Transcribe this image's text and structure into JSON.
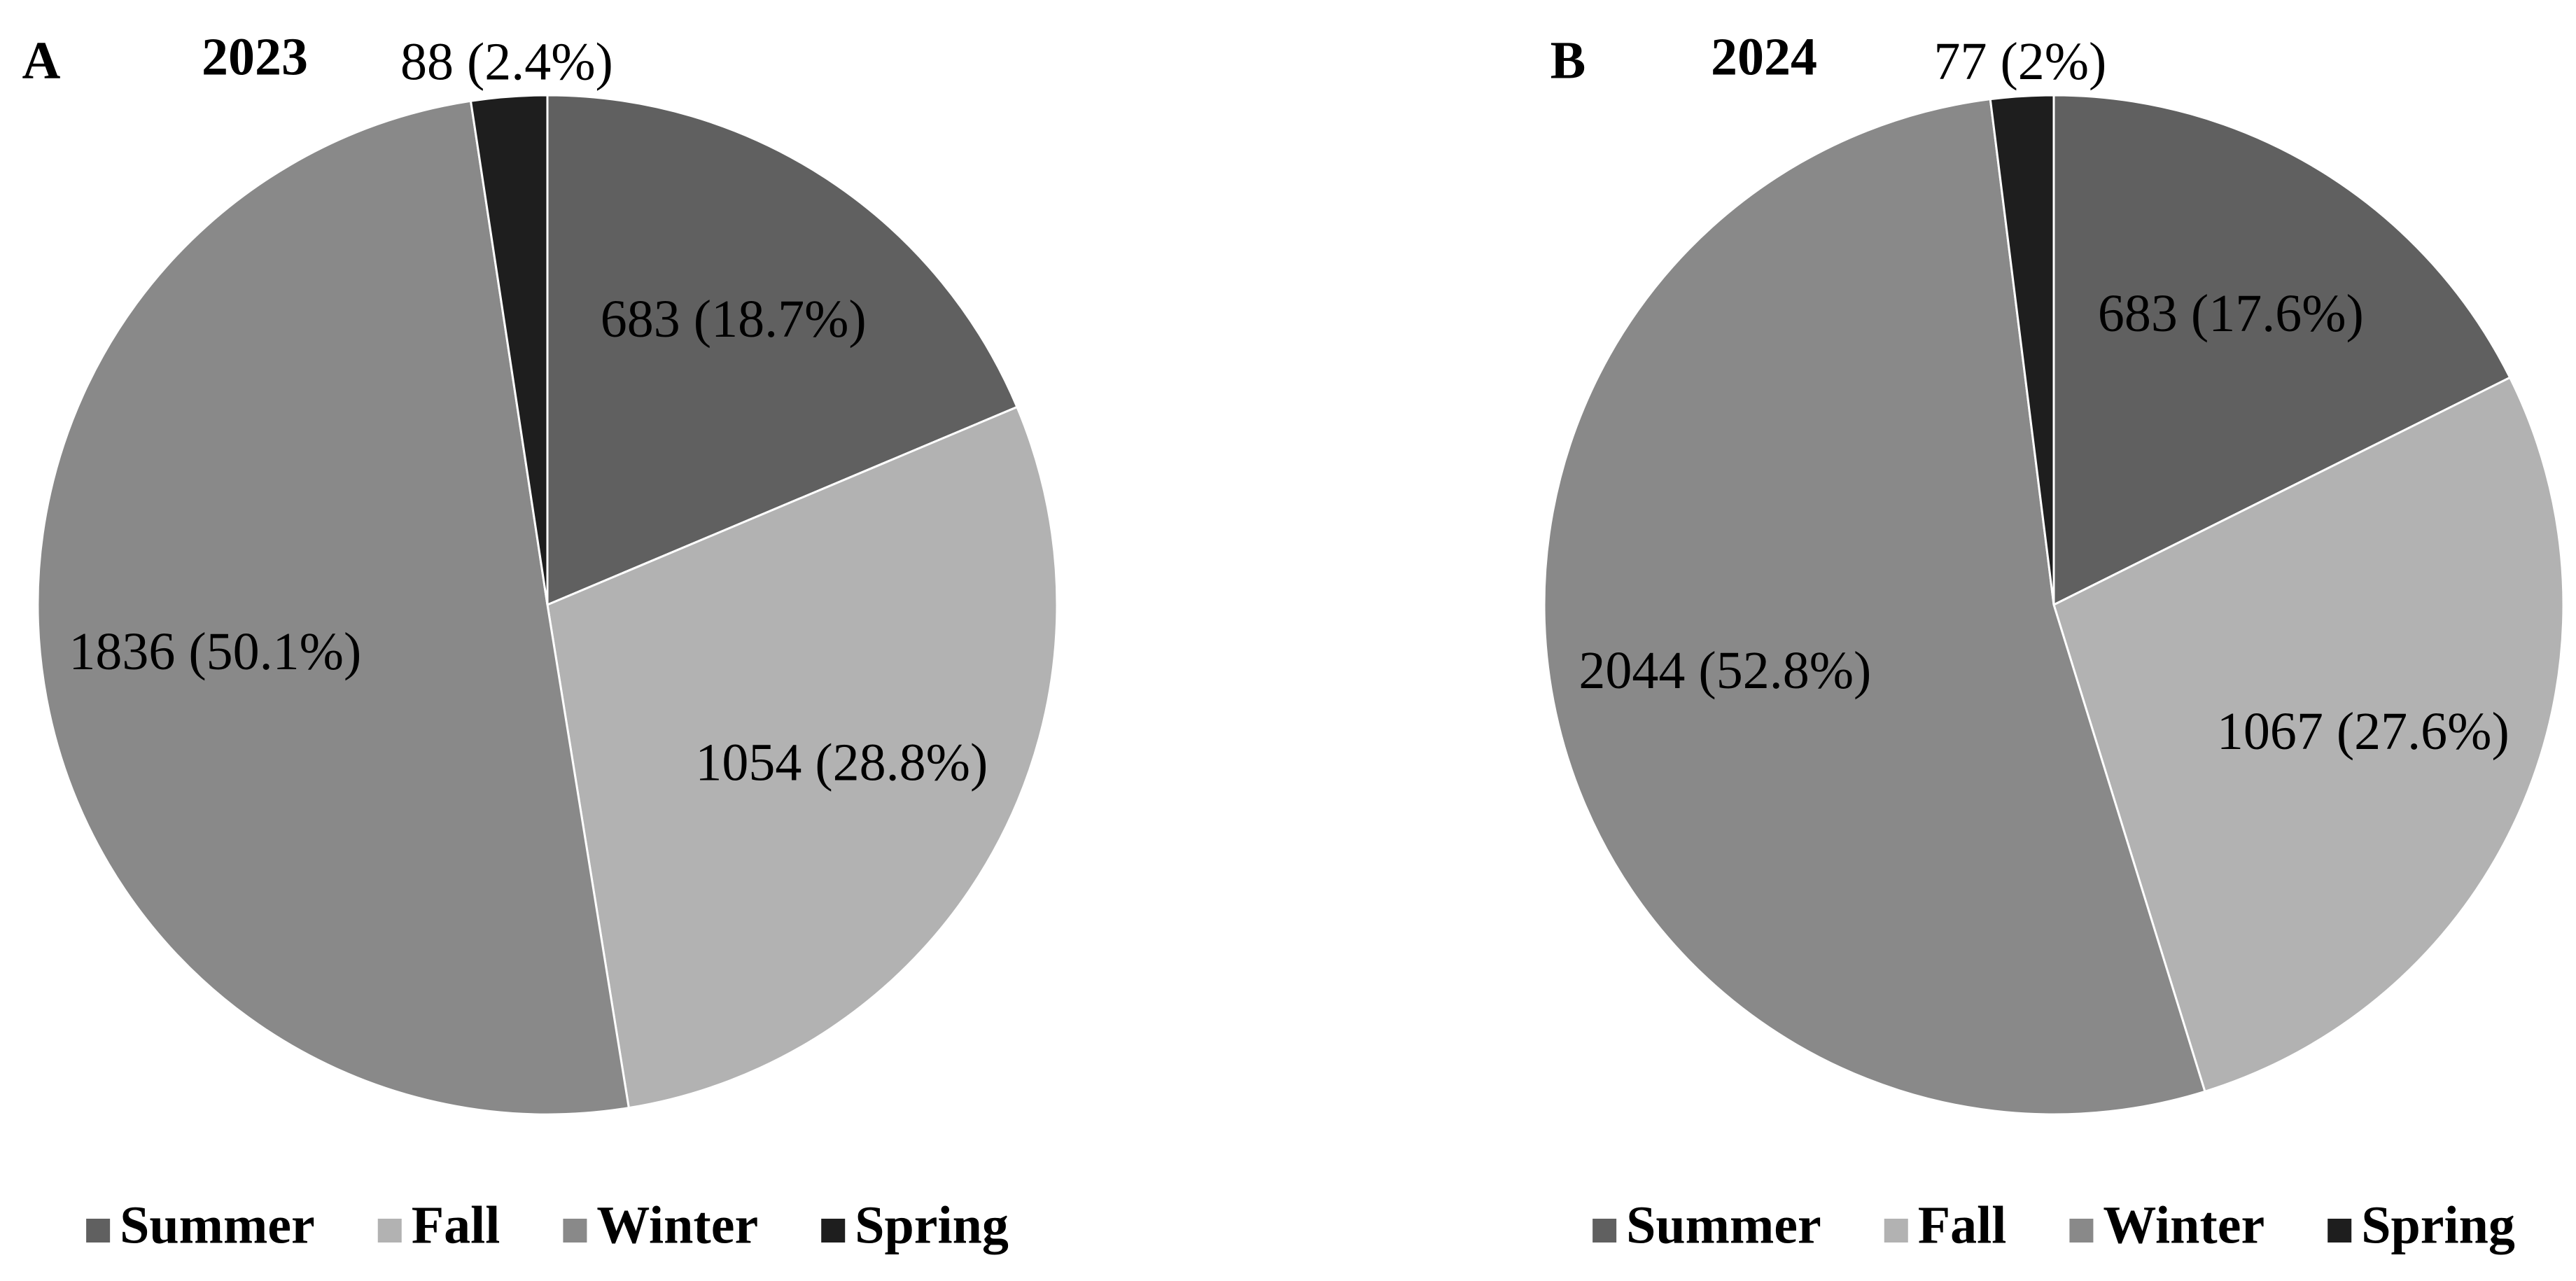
{
  "chart_data": [
    {
      "type": "pie",
      "panel": "A",
      "title": "2023",
      "categories": [
        "Summer",
        "Fall",
        "Winter",
        "Spring"
      ],
      "values": [
        683,
        1054,
        1836,
        88
      ],
      "value_labels": [
        "683 (18.7%)",
        "1054 (28.8%)",
        "1836 (50.1%)",
        "88 (2.4%)"
      ],
      "colors": [
        "#606060",
        "#b2b2b2",
        "#898989",
        "#1e1e1e"
      ]
    },
    {
      "type": "pie",
      "panel": "B",
      "title": "2024",
      "categories": [
        "Summer",
        "Fall",
        "Winter",
        "Spring"
      ],
      "values": [
        683,
        1067,
        2044,
        77
      ],
      "value_labels": [
        "683 (17.6%)",
        "1067 (27.6%)",
        "2044 (52.8%)",
        "77 (2%)"
      ],
      "colors": [
        "#606060",
        "#b2b2b2",
        "#898989",
        "#1e1e1e"
      ]
    }
  ]
}
